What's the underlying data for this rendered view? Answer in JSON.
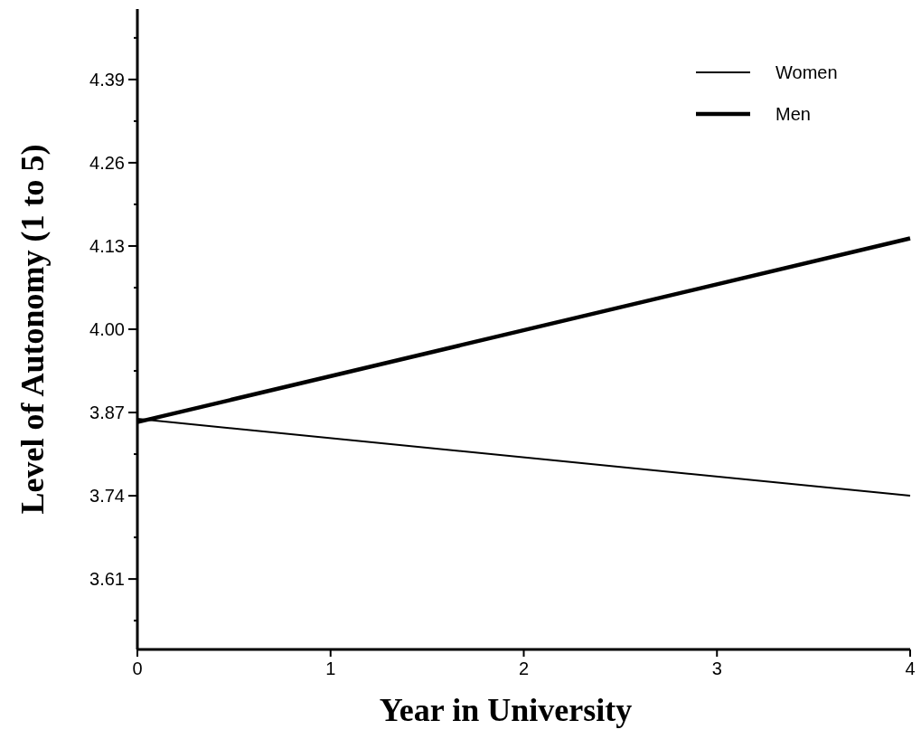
{
  "chart_data": {
    "type": "line",
    "xlabel": "Year in University",
    "ylabel": "Level of Autonomy (1 to 5)",
    "x": [
      0,
      4
    ],
    "series": [
      {
        "name": "Women",
        "color": "#000000",
        "values": [
          3.86,
          3.74
        ]
      },
      {
        "name": "Men",
        "color": "#000000",
        "values": [
          3.855,
          4.142
        ]
      }
    ],
    "xlim": [
      0,
      4
    ],
    "xticks": [
      0,
      1,
      2,
      3,
      4
    ],
    "ylim": [
      3.5,
      4.5
    ],
    "yticks": [
      {
        "value": 3.545,
        "label": null
      },
      {
        "value": 3.61,
        "label": "3.61"
      },
      {
        "value": 3.675,
        "label": null
      },
      {
        "value": 3.74,
        "label": "3.74"
      },
      {
        "value": 3.805,
        "label": null
      },
      {
        "value": 3.87,
        "label": "3.87"
      },
      {
        "value": 3.935,
        "label": null
      },
      {
        "value": 4.0,
        "label": "4.00"
      },
      {
        "value": 4.065,
        "label": null
      },
      {
        "value": 4.13,
        "label": "4.13"
      },
      {
        "value": 4.195,
        "label": null
      },
      {
        "value": 4.26,
        "label": "4.26"
      },
      {
        "value": 4.325,
        "label": null
      },
      {
        "value": 4.39,
        "label": "4.39"
      },
      {
        "value": 4.455,
        "label": null
      }
    ],
    "legend": "top right",
    "grid": false,
    "line_style": "solid"
  }
}
